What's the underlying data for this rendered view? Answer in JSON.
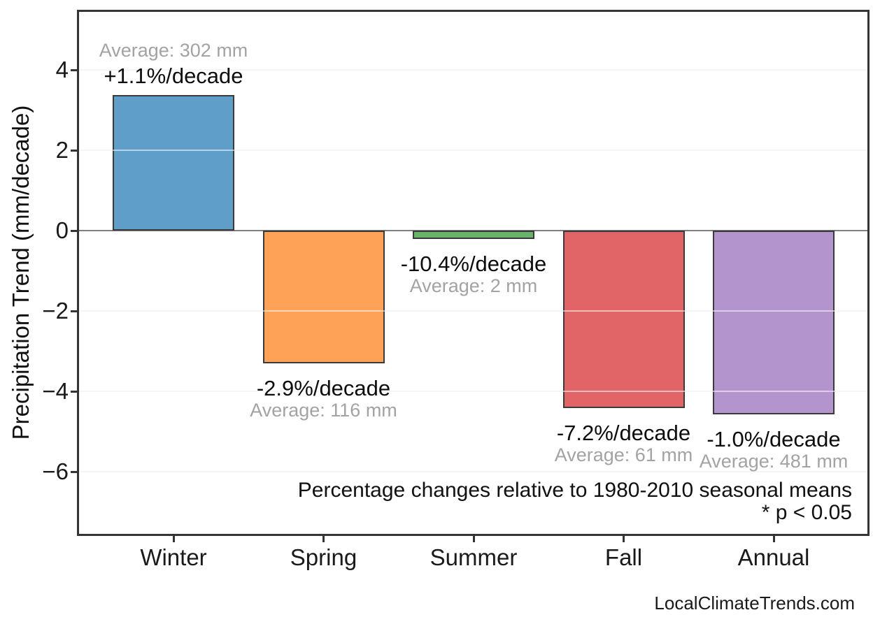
{
  "chart_data": {
    "type": "bar",
    "title": "",
    "xlabel": "",
    "ylabel": "Precipitation Trend (mm/decade)",
    "ylim": [
      -7.6,
      5.5
    ],
    "yticks": [
      4,
      2,
      0,
      -2,
      -4,
      -6
    ],
    "ytick_labels": [
      "4",
      "2",
      "0",
      "−2",
      "−4",
      "−6"
    ],
    "grid": true,
    "legend_position": "none",
    "categories": [
      "Winter",
      "Spring",
      "Summer",
      "Fall",
      "Annual"
    ],
    "series": [
      {
        "name": "Precipitation trend (mm/decade)",
        "values": [
          3.37,
          -3.3,
          -0.21,
          -4.42,
          -4.57
        ]
      }
    ],
    "bars": [
      {
        "category": "Winter",
        "value": 3.37,
        "percent_label": "+1.1%/decade",
        "average_label": "Average: 302 mm",
        "color": "#5f9ec9"
      },
      {
        "category": "Spring",
        "value": -3.3,
        "percent_label": "-2.9%/decade",
        "average_label": "Average: 116 mm",
        "color": "#fda257"
      },
      {
        "category": "Summer",
        "value": -0.21,
        "percent_label": "-10.4%/decade",
        "average_label": "Average: 2 mm",
        "color": "#6ab267"
      },
      {
        "category": "Fall",
        "value": -4.42,
        "percent_label": "-7.2%/decade",
        "average_label": "Average: 61 mm",
        "color": "#e16467"
      },
      {
        "category": "Annual",
        "value": -4.57,
        "percent_label": "-1.0%/decade",
        "average_label": "Average: 481 mm",
        "color": "#b394cd"
      }
    ],
    "annotations": [
      "Percentage changes relative to 1980-2010 seasonal means",
      "* p < 0.05"
    ]
  },
  "footer": {
    "watermark": "LocalClimateTrends.com"
  },
  "colors": {
    "grid": "#e9e9e9",
    "grid_over_bars": "rgba(255,255,255,0.55)",
    "zero_line": "#808080",
    "axis": "#343434",
    "bar_border": "#3a3a3a",
    "percent_text": "#0d0d0d",
    "average_text": "#a3a3a3"
  }
}
